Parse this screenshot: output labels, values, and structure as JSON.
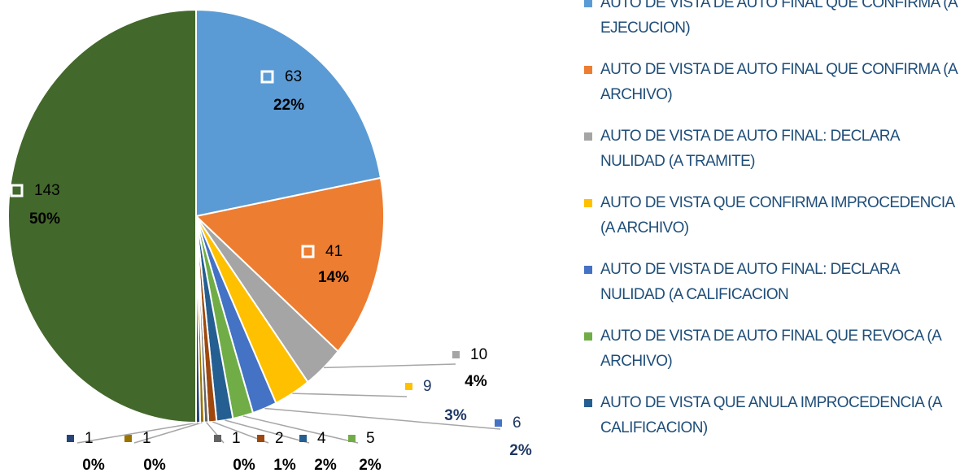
{
  "chart_data": {
    "type": "pie",
    "categories": [
      "AUTO DE VISTA DE AUTO FINAL QUE CONFIRMA (A EJECUCION)",
      "AUTO DE VISTA DE AUTO FINAL QUE CONFIRMA (A ARCHIVO)",
      "AUTO DE VISTA DE AUTO FINAL: DECLARA NULIDAD (A TRAMITE)",
      "AUTO DE VISTA QUE CONFIRMA IMPROCEDENCIA (A ARCHIVO)",
      "AUTO DE VISTA DE AUTO FINAL: DECLARA NULIDAD (A CALIFICACION",
      "AUTO DE VISTA DE AUTO FINAL QUE REVOCA (A ARCHIVO)",
      "AUTO DE VISTA QUE ANULA IMPROCEDENCIA (A CALIFICACION)",
      null,
      null,
      null,
      null,
      null
    ],
    "values": [
      63,
      41,
      10,
      9,
      6,
      5,
      4,
      2,
      1,
      1,
      1,
      143
    ],
    "percentages": [
      22,
      14,
      4,
      3,
      2,
      2,
      2,
      1,
      0,
      0,
      0,
      50
    ],
    "percent_labels": [
      "22%",
      "14%",
      "4%",
      "3%",
      "2%",
      "2%",
      "2%",
      "1%",
      "0%",
      "0%",
      "0%",
      "50%"
    ],
    "colors": [
      "#5b9bd5",
      "#ed7d31",
      "#a5a5a5",
      "#ffc000",
      "#4472c4",
      "#70ad47",
      "#255e91",
      "#9e480e",
      "#636363",
      "#997300",
      "#264478",
      "#43682b"
    ]
  }
}
